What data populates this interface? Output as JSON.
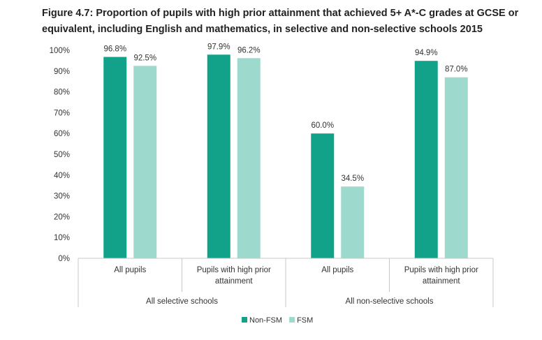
{
  "chart_data": {
    "type": "bar",
    "title": "Figure 4.7: Proportion of pupils with high prior attainment that achieved 5+ A*-C grades at GCSE or equivalent, including English and mathematics, in selective and non-selective schools 2015",
    "groups": [
      {
        "label": "All selective schools",
        "categories": [
          "All pupils",
          "Pupils with high prior attainment"
        ]
      },
      {
        "label": "All non-selective schools",
        "categories": [
          "All pupils",
          "Pupils with high prior attainment"
        ]
      }
    ],
    "categories": [
      "All pupils",
      "Pupils with high prior attainment",
      "All pupils",
      "Pupils with high prior attainment"
    ],
    "series": [
      {
        "name": "Non-FSM",
        "color": "#12a28a",
        "values": [
          96.8,
          97.9,
          60.0,
          94.9
        ],
        "labels": [
          "96.8%",
          "97.9%",
          "60.0%",
          "94.9%"
        ]
      },
      {
        "name": "FSM",
        "color": "#9dd9cd",
        "values": [
          92.5,
          96.2,
          34.5,
          87.0
        ],
        "labels": [
          "92.5%",
          "96.2%",
          "34.5%",
          "87.0%"
        ]
      }
    ],
    "ylim": [
      0,
      100
    ],
    "yticks": [
      "0%",
      "10%",
      "20%",
      "30%",
      "40%",
      "50%",
      "60%",
      "70%",
      "80%",
      "90%",
      "100%"
    ],
    "xlabel": "",
    "ylabel": "",
    "grid": false,
    "legend_position": "bottom"
  }
}
